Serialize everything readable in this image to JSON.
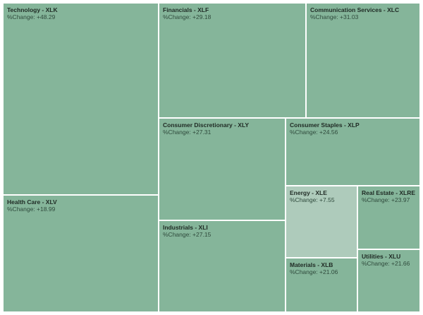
{
  "chart_data": {
    "type": "treemap",
    "title": "",
    "value_label": "%Change",
    "colors": {
      "default": "#85b59a",
      "light": "#aecbbb",
      "border": "#ffffff"
    },
    "tiles": [
      {
        "name": "Technology - XLK",
        "change": "+48.29"
      },
      {
        "name": "Health Care - XLV",
        "change": "+18.99"
      },
      {
        "name": "Financials - XLF",
        "change": "+29.18"
      },
      {
        "name": "Communication Services - XLC",
        "change": "+31.03"
      },
      {
        "name": "Consumer Discretionary - XLY",
        "change": "+27.31"
      },
      {
        "name": "Industrials - XLI",
        "change": "+27.15"
      },
      {
        "name": "Consumer Staples - XLP",
        "change": "+24.56"
      },
      {
        "name": "Energy - XLE",
        "change": "+7.55"
      },
      {
        "name": "Materials - XLB",
        "change": "+21.06"
      },
      {
        "name": "Real Estate - XLRE",
        "change": "+23.97"
      },
      {
        "name": "Utilities - XLU",
        "change": "+21.66"
      }
    ]
  }
}
